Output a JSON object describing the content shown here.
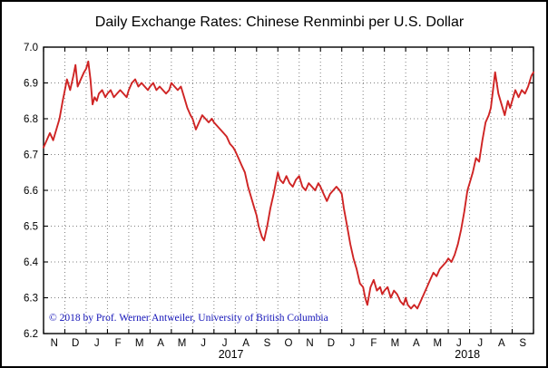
{
  "window": {
    "title": "Daily Exchange Rates: Chinese Renminbi per U.S. Dollar"
  },
  "copyright_notice": "© 2018 by Prof. Werner Antweiler, University of British Columbia",
  "colors": {
    "line": "#cf2424",
    "copyright_text": "#1414b8",
    "grid": "#808080",
    "axis": "#000000",
    "background": "#ffffff"
  },
  "chart_data": {
    "type": "line",
    "title": "Daily Exchange Rates: Chinese Renminbi per U.S. Dollar",
    "x_start": "Nov 2016",
    "x_end": "Sep 2018",
    "x_unit": "months since start (Nov 2016 = 0)",
    "month_labels": [
      "N",
      "D",
      "J",
      "F",
      "M",
      "A",
      "M",
      "J",
      "J",
      "A",
      "S",
      "O",
      "N",
      "D",
      "J",
      "F",
      "M",
      "A",
      "M",
      "J",
      "J",
      "A",
      "S"
    ],
    "year_labels": [
      {
        "label": "2017",
        "month_pos": 8.8
      },
      {
        "label": "2018",
        "month_pos": 19.9
      }
    ],
    "ylim": [
      6.2,
      7.0
    ],
    "yticks": [
      6.2,
      6.3,
      6.4,
      6.5,
      6.6,
      6.7,
      6.8,
      6.9,
      7.0
    ],
    "grid": true,
    "legend": "none",
    "line_color": "#cf2424",
    "series": [
      {
        "name": "CNY per USD",
        "points": [
          [
            0,
            6.72
          ],
          [
            0.15,
            6.74
          ],
          [
            0.3,
            6.76
          ],
          [
            0.45,
            6.74
          ],
          [
            0.6,
            6.77
          ],
          [
            0.75,
            6.8
          ],
          [
            0.9,
            6.85
          ],
          [
            1,
            6.88
          ],
          [
            1.1,
            6.91
          ],
          [
            1.25,
            6.88
          ],
          [
            1.4,
            6.92
          ],
          [
            1.5,
            6.95
          ],
          [
            1.6,
            6.89
          ],
          [
            1.75,
            6.91
          ],
          [
            1.9,
            6.93
          ],
          [
            2,
            6.94
          ],
          [
            2.1,
            6.96
          ],
          [
            2.2,
            6.91
          ],
          [
            2.3,
            6.84
          ],
          [
            2.4,
            6.86
          ],
          [
            2.5,
            6.85
          ],
          [
            2.6,
            6.87
          ],
          [
            2.75,
            6.88
          ],
          [
            2.9,
            6.86
          ],
          [
            3,
            6.87
          ],
          [
            3.15,
            6.88
          ],
          [
            3.3,
            6.86
          ],
          [
            3.45,
            6.87
          ],
          [
            3.6,
            6.88
          ],
          [
            3.75,
            6.87
          ],
          [
            3.9,
            6.86
          ],
          [
            4,
            6.88
          ],
          [
            4.15,
            6.9
          ],
          [
            4.3,
            6.91
          ],
          [
            4.45,
            6.89
          ],
          [
            4.6,
            6.9
          ],
          [
            4.75,
            6.89
          ],
          [
            4.9,
            6.88
          ],
          [
            5,
            6.89
          ],
          [
            5.15,
            6.9
          ],
          [
            5.3,
            6.88
          ],
          [
            5.45,
            6.89
          ],
          [
            5.6,
            6.88
          ],
          [
            5.75,
            6.87
          ],
          [
            5.9,
            6.88
          ],
          [
            6,
            6.9
          ],
          [
            6.15,
            6.89
          ],
          [
            6.3,
            6.88
          ],
          [
            6.45,
            6.89
          ],
          [
            6.6,
            6.86
          ],
          [
            6.75,
            6.83
          ],
          [
            6.9,
            6.81
          ],
          [
            7,
            6.8
          ],
          [
            7.15,
            6.77
          ],
          [
            7.3,
            6.79
          ],
          [
            7.45,
            6.81
          ],
          [
            7.6,
            6.8
          ],
          [
            7.75,
            6.79
          ],
          [
            7.9,
            6.8
          ],
          [
            8,
            6.79
          ],
          [
            8.15,
            6.78
          ],
          [
            8.3,
            6.77
          ],
          [
            8.45,
            6.76
          ],
          [
            8.6,
            6.75
          ],
          [
            8.75,
            6.73
          ],
          [
            8.9,
            6.72
          ],
          [
            9,
            6.71
          ],
          [
            9.15,
            6.69
          ],
          [
            9.3,
            6.67
          ],
          [
            9.45,
            6.65
          ],
          [
            9.6,
            6.61
          ],
          [
            9.75,
            6.58
          ],
          [
            9.9,
            6.55
          ],
          [
            10,
            6.53
          ],
          [
            10.1,
            6.5
          ],
          [
            10.25,
            6.47
          ],
          [
            10.35,
            6.46
          ],
          [
            10.5,
            6.5
          ],
          [
            10.65,
            6.55
          ],
          [
            10.8,
            6.59
          ],
          [
            10.9,
            6.62
          ],
          [
            11,
            6.65
          ],
          [
            11.1,
            6.63
          ],
          [
            11.25,
            6.62
          ],
          [
            11.4,
            6.64
          ],
          [
            11.55,
            6.62
          ],
          [
            11.7,
            6.61
          ],
          [
            11.85,
            6.63
          ],
          [
            12,
            6.64
          ],
          [
            12.15,
            6.61
          ],
          [
            12.3,
            6.6
          ],
          [
            12.45,
            6.62
          ],
          [
            12.6,
            6.61
          ],
          [
            12.75,
            6.6
          ],
          [
            12.9,
            6.62
          ],
          [
            13,
            6.61
          ],
          [
            13.15,
            6.59
          ],
          [
            13.3,
            6.57
          ],
          [
            13.45,
            6.59
          ],
          [
            13.6,
            6.6
          ],
          [
            13.75,
            6.61
          ],
          [
            13.9,
            6.6
          ],
          [
            14,
            6.59
          ],
          [
            14.1,
            6.55
          ],
          [
            14.25,
            6.5
          ],
          [
            14.4,
            6.45
          ],
          [
            14.55,
            6.41
          ],
          [
            14.7,
            6.38
          ],
          [
            14.85,
            6.34
          ],
          [
            15,
            6.33
          ],
          [
            15.1,
            6.3
          ],
          [
            15.2,
            6.28
          ],
          [
            15.35,
            6.33
          ],
          [
            15.5,
            6.35
          ],
          [
            15.65,
            6.32
          ],
          [
            15.8,
            6.33
          ],
          [
            15.9,
            6.31
          ],
          [
            16,
            6.32
          ],
          [
            16.15,
            6.33
          ],
          [
            16.3,
            6.3
          ],
          [
            16.45,
            6.32
          ],
          [
            16.6,
            6.31
          ],
          [
            16.75,
            6.29
          ],
          [
            16.9,
            6.28
          ],
          [
            17,
            6.3
          ],
          [
            17.1,
            6.28
          ],
          [
            17.25,
            6.27
          ],
          [
            17.4,
            6.28
          ],
          [
            17.55,
            6.27
          ],
          [
            17.7,
            6.29
          ],
          [
            17.85,
            6.31
          ],
          [
            18,
            6.33
          ],
          [
            18.15,
            6.35
          ],
          [
            18.3,
            6.37
          ],
          [
            18.45,
            6.36
          ],
          [
            18.6,
            6.38
          ],
          [
            18.75,
            6.39
          ],
          [
            18.9,
            6.4
          ],
          [
            19,
            6.41
          ],
          [
            19.15,
            6.4
          ],
          [
            19.3,
            6.42
          ],
          [
            19.45,
            6.45
          ],
          [
            19.6,
            6.49
          ],
          [
            19.75,
            6.54
          ],
          [
            19.9,
            6.6
          ],
          [
            20,
            6.62
          ],
          [
            20.15,
            6.65
          ],
          [
            20.3,
            6.69
          ],
          [
            20.45,
            6.68
          ],
          [
            20.6,
            6.74
          ],
          [
            20.75,
            6.79
          ],
          [
            20.9,
            6.81
          ],
          [
            21,
            6.83
          ],
          [
            21.1,
            6.88
          ],
          [
            21.2,
            6.93
          ],
          [
            21.35,
            6.87
          ],
          [
            21.5,
            6.84
          ],
          [
            21.65,
            6.81
          ],
          [
            21.8,
            6.85
          ],
          [
            21.9,
            6.83
          ],
          [
            22,
            6.85
          ],
          [
            22.15,
            6.88
          ],
          [
            22.3,
            6.86
          ],
          [
            22.45,
            6.88
          ],
          [
            22.6,
            6.87
          ],
          [
            22.75,
            6.89
          ],
          [
            22.9,
            6.92
          ],
          [
            23,
            6.93
          ]
        ]
      }
    ]
  }
}
